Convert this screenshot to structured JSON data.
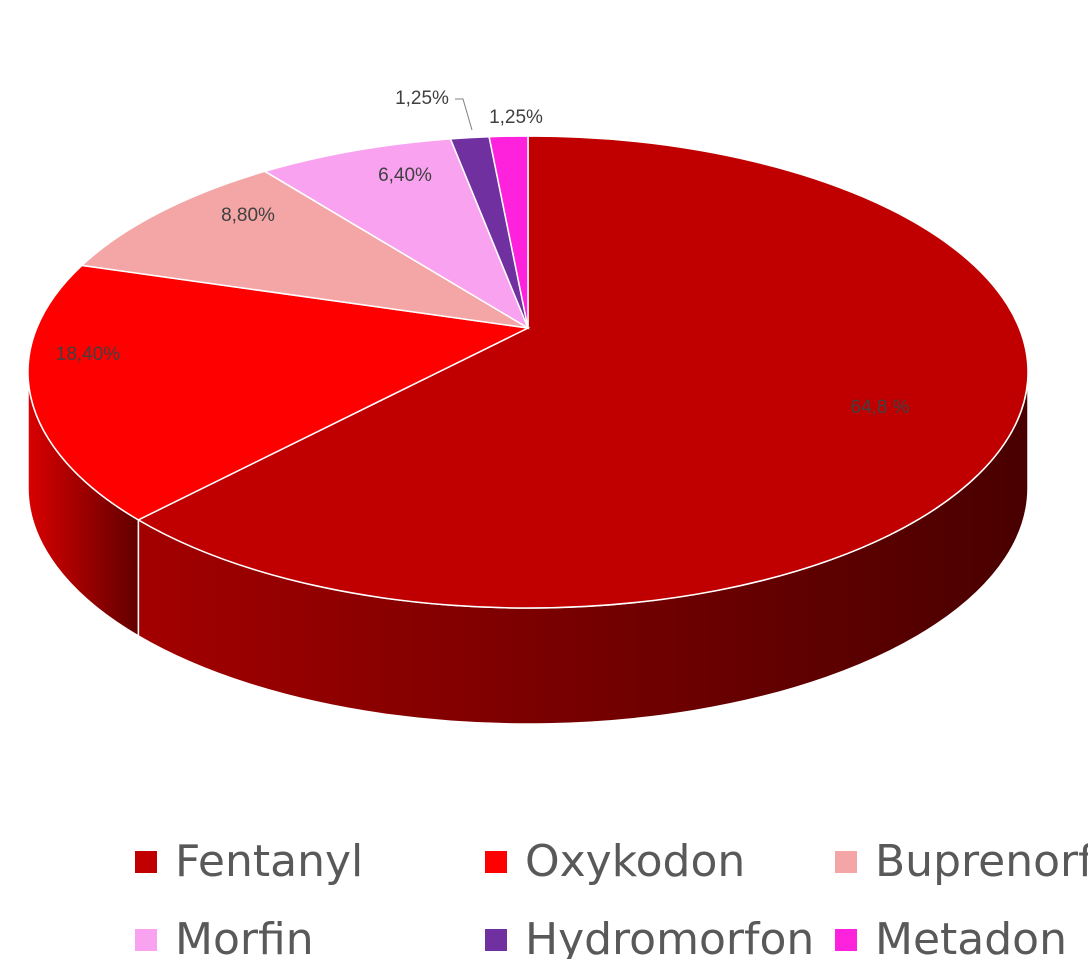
{
  "chart_data": {
    "type": "pie",
    "categories": [
      "Fentanyl",
      "Oxykodon",
      "Buprenorfin",
      "Morfin",
      "Hydromorfon",
      "Metadon"
    ],
    "values": [
      64.8,
      18.4,
      8.8,
      6.4,
      1.25,
      1.25
    ],
    "value_labels": [
      "64,8 %",
      "18,40%",
      "8,80%",
      "6,40%",
      "1,25%",
      "1,25%"
    ],
    "colors": [
      "#c00000",
      "#ff0000",
      "#f4a6a6",
      "#f9a3f0",
      "#7030a0",
      "#ff22dd"
    ],
    "legend": "bottom"
  }
}
